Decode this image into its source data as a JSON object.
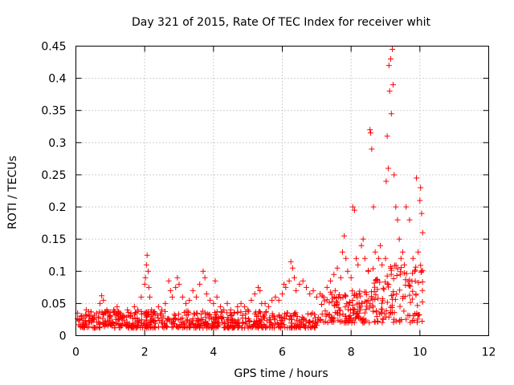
{
  "chart_data": {
    "type": "scatter",
    "title": "Day 321 of 2015, Rate Of TEC Index for receiver whit",
    "xlabel": "GPS time / hours",
    "ylabel": "ROTI / TECUs",
    "xlim": [
      0,
      12
    ],
    "ylim": [
      0,
      0.45
    ],
    "x_ticks": [
      0,
      2,
      4,
      6,
      8,
      10,
      12
    ],
    "y_ticks": [
      0,
      0.05,
      0.1,
      0.15,
      0.2,
      0.25,
      0.3,
      0.35,
      0.4,
      0.45
    ],
    "x_tick_labels": [
      "0",
      "2",
      "4",
      "6",
      "8",
      "10",
      "12"
    ],
    "y_tick_labels": [
      "0",
      "0.05",
      "0.1",
      "0.15",
      "0.2",
      "0.25",
      "0.3",
      "0.35",
      "0.4",
      "0.45"
    ],
    "grid": true,
    "marker": "+",
    "marker_color": "#ff0000",
    "series": [
      {
        "name": "ROTI",
        "points": [
          [
            0.05,
            0.035
          ],
          [
            0.1,
            0.025
          ],
          [
            0.15,
            0.03
          ],
          [
            0.2,
            0.02
          ],
          [
            0.3,
            0.04
          ],
          [
            0.4,
            0.03
          ],
          [
            0.5,
            0.025
          ],
          [
            0.6,
            0.035
          ],
          [
            0.7,
            0.05
          ],
          [
            0.75,
            0.062
          ],
          [
            0.8,
            0.055
          ],
          [
            0.9,
            0.04
          ],
          [
            1.0,
            0.03
          ],
          [
            1.1,
            0.04
          ],
          [
            1.2,
            0.045
          ],
          [
            1.3,
            0.035
          ],
          [
            1.4,
            0.03
          ],
          [
            1.5,
            0.04
          ],
          [
            1.6,
            0.035
          ],
          [
            1.7,
            0.045
          ],
          [
            1.8,
            0.04
          ],
          [
            1.9,
            0.06
          ],
          [
            2.0,
            0.08
          ],
          [
            2.02,
            0.09
          ],
          [
            2.05,
            0.11
          ],
          [
            2.07,
            0.125
          ],
          [
            2.1,
            0.1
          ],
          [
            2.12,
            0.075
          ],
          [
            2.15,
            0.06
          ],
          [
            2.2,
            0.04
          ],
          [
            2.3,
            0.035
          ],
          [
            2.4,
            0.045
          ],
          [
            2.5,
            0.04
          ],
          [
            2.6,
            0.05
          ],
          [
            2.7,
            0.085
          ],
          [
            2.75,
            0.07
          ],
          [
            2.8,
            0.06
          ],
          [
            2.9,
            0.075
          ],
          [
            2.95,
            0.09
          ],
          [
            3.0,
            0.08
          ],
          [
            3.1,
            0.06
          ],
          [
            3.2,
            0.05
          ],
          [
            3.3,
            0.055
          ],
          [
            3.4,
            0.07
          ],
          [
            3.5,
            0.06
          ],
          [
            3.6,
            0.08
          ],
          [
            3.7,
            0.1
          ],
          [
            3.75,
            0.09
          ],
          [
            3.8,
            0.065
          ],
          [
            3.9,
            0.055
          ],
          [
            4.0,
            0.05
          ],
          [
            4.05,
            0.085
          ],
          [
            4.1,
            0.06
          ],
          [
            4.2,
            0.045
          ],
          [
            4.3,
            0.04
          ],
          [
            4.4,
            0.05
          ],
          [
            4.5,
            0.04
          ],
          [
            4.6,
            0.035
          ],
          [
            4.7,
            0.045
          ],
          [
            4.8,
            0.05
          ],
          [
            4.9,
            0.045
          ],
          [
            5.0,
            0.04
          ],
          [
            5.1,
            0.055
          ],
          [
            5.2,
            0.065
          ],
          [
            5.3,
            0.075
          ],
          [
            5.35,
            0.07
          ],
          [
            5.4,
            0.05
          ],
          [
            5.5,
            0.05
          ],
          [
            5.6,
            0.045
          ],
          [
            5.7,
            0.055
          ],
          [
            5.8,
            0.06
          ],
          [
            5.9,
            0.055
          ],
          [
            6.0,
            0.065
          ],
          [
            6.05,
            0.08
          ],
          [
            6.1,
            0.075
          ],
          [
            6.2,
            0.085
          ],
          [
            6.25,
            0.115
          ],
          [
            6.3,
            0.105
          ],
          [
            6.35,
            0.09
          ],
          [
            6.4,
            0.07
          ],
          [
            6.5,
            0.08
          ],
          [
            6.6,
            0.085
          ],
          [
            6.7,
            0.075
          ],
          [
            6.8,
            0.065
          ],
          [
            6.9,
            0.07
          ],
          [
            7.0,
            0.06
          ],
          [
            7.1,
            0.065
          ],
          [
            7.2,
            0.06
          ],
          [
            7.3,
            0.075
          ],
          [
            7.4,
            0.085
          ],
          [
            7.5,
            0.095
          ],
          [
            7.6,
            0.105
          ],
          [
            7.7,
            0.09
          ],
          [
            7.75,
            0.13
          ],
          [
            7.8,
            0.155
          ],
          [
            7.85,
            0.12
          ],
          [
            7.9,
            0.1
          ],
          [
            8.0,
            0.09
          ],
          [
            8.05,
            0.2
          ],
          [
            8.1,
            0.195
          ],
          [
            8.15,
            0.12
          ],
          [
            8.2,
            0.11
          ],
          [
            8.3,
            0.14
          ],
          [
            8.35,
            0.15
          ],
          [
            8.4,
            0.12
          ],
          [
            8.5,
            0.1
          ],
          [
            8.55,
            0.32
          ],
          [
            8.57,
            0.315
          ],
          [
            8.6,
            0.29
          ],
          [
            8.65,
            0.2
          ],
          [
            8.7,
            0.13
          ],
          [
            8.8,
            0.12
          ],
          [
            8.85,
            0.14
          ],
          [
            8.9,
            0.11
          ],
          [
            9.0,
            0.12
          ],
          [
            9.02,
            0.24
          ],
          [
            9.05,
            0.31
          ],
          [
            9.08,
            0.26
          ],
          [
            9.1,
            0.42
          ],
          [
            9.12,
            0.38
          ],
          [
            9.15,
            0.43
          ],
          [
            9.17,
            0.345
          ],
          [
            9.2,
            0.445
          ],
          [
            9.22,
            0.39
          ],
          [
            9.25,
            0.25
          ],
          [
            9.3,
            0.2
          ],
          [
            9.35,
            0.18
          ],
          [
            9.4,
            0.15
          ],
          [
            9.45,
            0.12
          ],
          [
            9.5,
            0.13
          ],
          [
            9.55,
            0.11
          ],
          [
            9.6,
            0.2
          ],
          [
            9.7,
            0.18
          ],
          [
            9.8,
            0.12
          ],
          [
            9.85,
            0.1
          ],
          [
            9.9,
            0.245
          ],
          [
            9.95,
            0.13
          ],
          [
            10.0,
            0.21
          ],
          [
            10.02,
            0.23
          ],
          [
            10.05,
            0.19
          ],
          [
            10.08,
            0.16
          ]
        ]
      }
    ]
  }
}
